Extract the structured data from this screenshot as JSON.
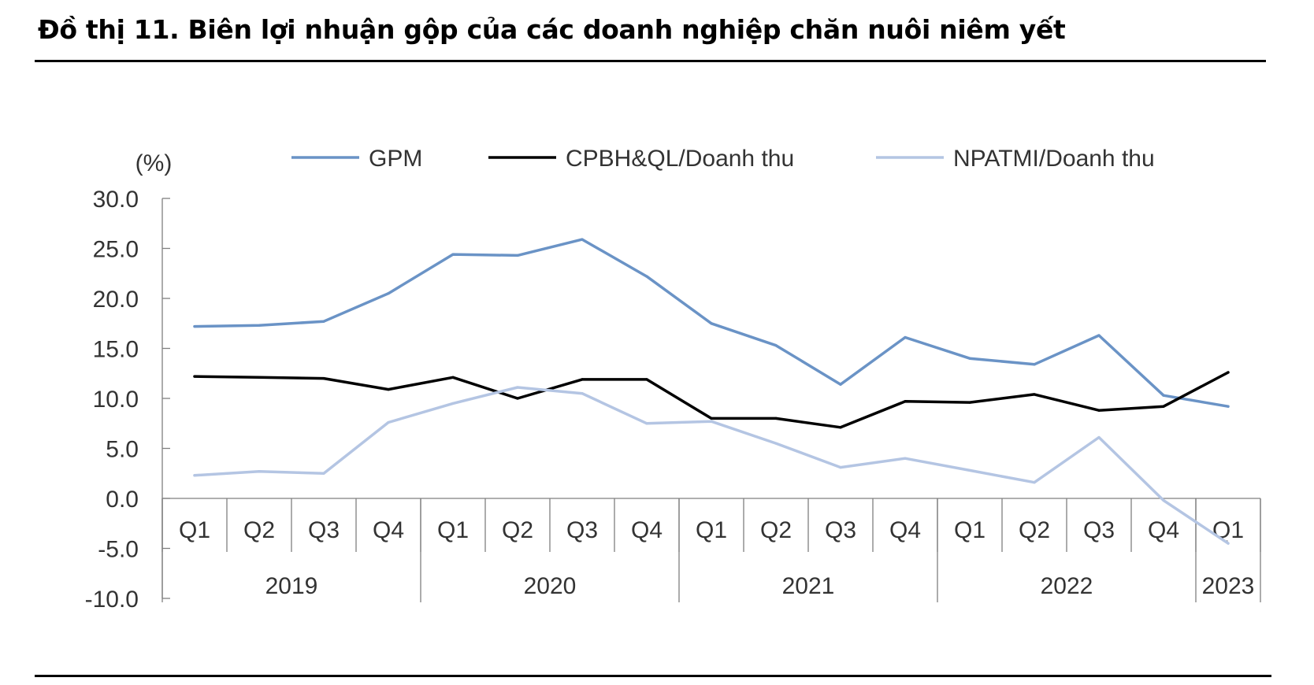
{
  "title": "Đồ thị 11. Biên lợi nhuận gộp của các doanh nghiệp chăn nuôi niêm yết",
  "chart_data": {
    "type": "line",
    "y_unit_label": "(%)",
    "ylim": [
      -10,
      30
    ],
    "ytick_step": 5,
    "ytick_labels": [
      "-10.0",
      "-5.0",
      "0.0",
      "5.0",
      "10.0",
      "15.0",
      "20.0",
      "25.0",
      "30.0"
    ],
    "categories": [
      "Q1",
      "Q2",
      "Q3",
      "Q4",
      "Q1",
      "Q2",
      "Q3",
      "Q4",
      "Q1",
      "Q2",
      "Q3",
      "Q4",
      "Q1",
      "Q2",
      "Q3",
      "Q4",
      "Q1"
    ],
    "year_groups": [
      {
        "label": "2019",
        "count": 4
      },
      {
        "label": "2020",
        "count": 4
      },
      {
        "label": "2021",
        "count": 4
      },
      {
        "label": "2022",
        "count": 4
      },
      {
        "label": "2023",
        "count": 1
      }
    ],
    "legend_position": "top",
    "grid": false,
    "series": [
      {
        "name": "GPM",
        "color": "#6a93c6",
        "values": [
          17.2,
          17.3,
          17.7,
          20.5,
          24.4,
          24.3,
          25.9,
          22.2,
          17.5,
          15.3,
          11.4,
          16.1,
          14.0,
          13.4,
          16.3,
          10.3,
          9.2
        ]
      },
      {
        "name": "CPBH&QL/Doanh thu",
        "color": "#000000",
        "values": [
          12.2,
          12.1,
          12.0,
          10.9,
          12.1,
          10.0,
          11.9,
          11.9,
          8.0,
          8.0,
          7.1,
          9.7,
          9.6,
          10.4,
          8.8,
          9.2,
          12.6
        ]
      },
      {
        "name": "NPATMI/Doanh thu",
        "color": "#b4c5e3",
        "values": [
          2.3,
          2.7,
          2.5,
          7.6,
          9.5,
          11.1,
          10.5,
          7.5,
          7.7,
          5.5,
          3.1,
          4.0,
          2.8,
          1.6,
          6.1,
          -0.2,
          -4.5
        ]
      }
    ]
  }
}
